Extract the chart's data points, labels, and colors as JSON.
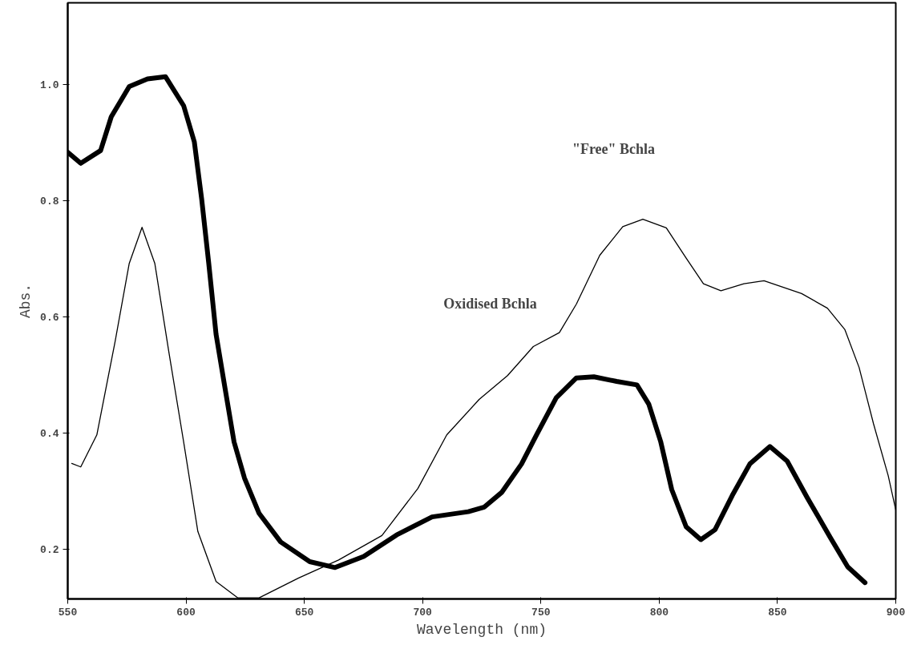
{
  "chart_data": {
    "type": "line",
    "xlabel": "Wavelength (nm)",
    "ylabel": "Abs.",
    "xlim": [
      550,
      900
    ],
    "xticks": [
      550,
      600,
      650,
      700,
      750,
      800,
      850,
      900
    ],
    "ylim": [
      0.115,
      1.14
    ],
    "yticks": [
      0.2,
      0.4,
      0.6,
      0.8,
      {
        "value": 1,
        "label": "1.0"
      }
    ],
    "grid": false,
    "marker": "none",
    "line_style": "solid",
    "series": [
      {
        "color": "#000000",
        "x": [
          550,
          555.5,
          563.9,
          568.4,
          576,
          583.7,
          591.3,
          599,
          603.5,
          606.6,
          609.6,
          612.7,
          616.5,
          620.3,
          624.7,
          630.9,
          640,
          652.3,
          663,
          675.1,
          689,
          704,
          719.3,
          726.1,
          733.4,
          741.8,
          748,
          756.5,
          765,
          772.4,
          782,
          790.6,
          795.6,
          800.6,
          805.3,
          811.4,
          817.6,
          823.6,
          830.9,
          838.3,
          846.8,
          854.1,
          862.6,
          872.4,
          879.7,
          887
        ],
        "values": [
          0.883,
          0.864,
          0.886,
          0.944,
          0.996,
          1.009,
          1.013,
          0.963,
          0.901,
          0.803,
          0.692,
          0.57,
          0.477,
          0.385,
          0.323,
          0.262,
          0.213,
          0.179,
          0.169,
          0.188,
          0.225,
          0.256,
          0.265,
          0.273,
          0.298,
          0.347,
          0.396,
          0.461,
          0.495,
          0.497,
          0.489,
          0.483,
          0.45,
          0.386,
          0.303,
          0.239,
          0.217,
          0.234,
          0.293,
          0.347,
          0.377,
          0.352,
          0.289,
          0.22,
          0.17,
          0.143
        ]
      },
      {
        "color": "#000000",
        "x": [
          551.7,
          555.5,
          562.3,
          570,
          576,
          581.4,
          586.8,
          592.8,
          599,
          605,
          612.7,
          621.8,
          630.9,
          647.6,
          664.5,
          682.8,
          698,
          710.2,
          723.9,
          735.9,
          746.8,
          757.8,
          765,
          774.9,
          784.6,
          793.1,
          803,
          811.4,
          818.7,
          826.1,
          835.8,
          844.3,
          860.2,
          871.1,
          878.5,
          884.5,
          890.6,
          896.8,
          900
        ],
        "values": [
          0.348,
          0.342,
          0.397,
          0.557,
          0.692,
          0.754,
          0.692,
          0.538,
          0.385,
          0.231,
          0.145,
          0.117,
          0.117,
          0.151,
          0.182,
          0.224,
          0.305,
          0.397,
          0.458,
          0.499,
          0.549,
          0.573,
          0.622,
          0.706,
          0.755,
          0.768,
          0.753,
          0.701,
          0.657,
          0.645,
          0.657,
          0.662,
          0.64,
          0.615,
          0.578,
          0.513,
          0.416,
          0.327,
          0.268
        ]
      }
    ],
    "annotations": [
      "\"Free\" Bchla",
      "Oxidised Bchla"
    ]
  }
}
